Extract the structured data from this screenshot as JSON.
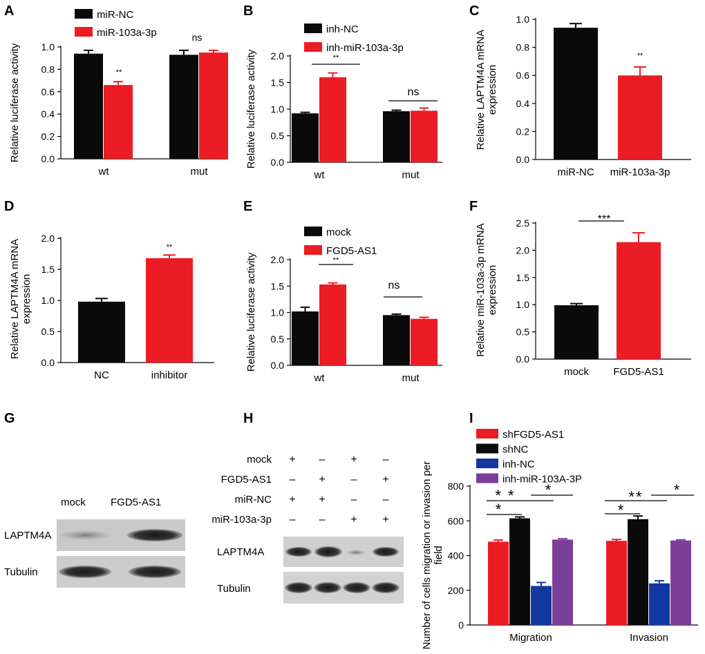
{
  "colors": {
    "black": "#0a0a0a",
    "red": "#ec1c24",
    "blue": "#1237a0",
    "purple": "#7b3f9a"
  },
  "panels": [
    {
      "letter": "A"
    },
    {
      "letter": "B"
    },
    {
      "letter": "C"
    },
    {
      "letter": "D"
    },
    {
      "letter": "E"
    },
    {
      "letter": "F"
    },
    {
      "letter": "G"
    },
    {
      "letter": "H"
    },
    {
      "letter": "I"
    }
  ],
  "chart_data": [
    {
      "panel": "A",
      "type": "bar",
      "ylabel": "Relative luciferase activity",
      "ylim": [
        0,
        1.0
      ],
      "yticks": [
        "0.0",
        "0.2",
        "0.4",
        "0.6",
        "0.8",
        "1.0"
      ],
      "categories": [
        "wt",
        "mut"
      ],
      "series": [
        {
          "name": "miR-NC",
          "color": "#0a0a0a",
          "values": [
            0.94,
            0.93
          ],
          "errors": [
            0.03,
            0.04
          ]
        },
        {
          "name": "miR-103a-3p",
          "color": "#ec1c24",
          "values": [
            0.66,
            0.95
          ],
          "errors": [
            0.03,
            0.02
          ]
        }
      ],
      "annotations": [
        "**",
        "ns"
      ]
    },
    {
      "panel": "B",
      "type": "bar",
      "ylabel": "Relative luciferase activity",
      "ylim": [
        0,
        2.0
      ],
      "yticks": [
        "0.0",
        "0.5",
        "1.0",
        "1.5",
        "2.0"
      ],
      "categories": [
        "wt",
        "mut"
      ],
      "series": [
        {
          "name": "inh-NC",
          "color": "#0a0a0a",
          "values": [
            0.92,
            0.96
          ],
          "errors": [
            0.02,
            0.02
          ]
        },
        {
          "name": "inh-miR-103a-3p",
          "color": "#ec1c24",
          "values": [
            1.6,
            0.97
          ],
          "errors": [
            0.08,
            0.05
          ]
        }
      ],
      "annotations": [
        "**",
        "ns"
      ]
    },
    {
      "panel": "C",
      "type": "bar",
      "ylabel": "Relative LAPTM4A mRNA expression",
      "ylim": [
        0,
        1.0
      ],
      "yticks": [
        "0.0",
        "0.2",
        "0.4",
        "0.6",
        "0.8",
        "1.0"
      ],
      "categories": [
        "miR-NC",
        "miR-103a-3p"
      ],
      "series": [
        {
          "name": "values",
          "colors": [
            "#0a0a0a",
            "#ec1c24"
          ],
          "values": [
            0.94,
            0.6
          ],
          "errors": [
            0.03,
            0.06
          ]
        }
      ],
      "annotations": [
        "**"
      ]
    },
    {
      "panel": "D",
      "type": "bar",
      "ylabel": "Relative LAPTM4A mRNA expression",
      "ylim": [
        0,
        2.0
      ],
      "yticks": [
        "0.0",
        "0.5",
        "1.0",
        "1.5",
        "2.0"
      ],
      "categories": [
        "NC",
        "inhibitor"
      ],
      "series": [
        {
          "name": "values",
          "colors": [
            "#0a0a0a",
            "#ec1c24"
          ],
          "values": [
            0.98,
            1.68
          ],
          "errors": [
            0.05,
            0.05
          ]
        }
      ],
      "annotations": [
        "**"
      ]
    },
    {
      "panel": "E",
      "type": "bar",
      "ylabel": "Relative luciferase activity",
      "ylim": [
        0,
        2.0
      ],
      "yticks": [
        "0.0",
        "0.5",
        "1.0",
        "1.5",
        "2.0"
      ],
      "categories": [
        "wt",
        "mut"
      ],
      "series": [
        {
          "name": "mock",
          "color": "#0a0a0a",
          "values": [
            1.02,
            0.95
          ],
          "errors": [
            0.08,
            0.02
          ]
        },
        {
          "name": "FGD5-AS1",
          "color": "#ec1c24",
          "values": [
            1.53,
            0.88
          ],
          "errors": [
            0.03,
            0.03
          ]
        }
      ],
      "annotations": [
        "**",
        "ns"
      ]
    },
    {
      "panel": "F",
      "type": "bar",
      "ylabel": "Relative miR-103a-3p mRNA expression",
      "ylim": [
        0,
        2.5
      ],
      "yticks": [
        "0.0",
        "0.5",
        "1.0",
        "1.5",
        "2.0",
        "2.5"
      ],
      "categories": [
        "mock",
        "FGD5-AS1"
      ],
      "series": [
        {
          "name": "values",
          "colors": [
            "#0a0a0a",
            "#ec1c24"
          ],
          "values": [
            0.99,
            2.15
          ],
          "errors": [
            0.03,
            0.17
          ]
        }
      ],
      "annotations": [
        "***"
      ]
    },
    {
      "panel": "I",
      "type": "bar",
      "ylabel": "Number of cells migration or invasion per field",
      "ylim": [
        0,
        800
      ],
      "yticks": [
        "0",
        "200",
        "400",
        "600",
        "800"
      ],
      "categories": [
        "Migration",
        "Invasion"
      ],
      "series": [
        {
          "name": "shFGD5-AS1",
          "color": "#ec1c24",
          "values": [
            480,
            485
          ],
          "errors": [
            10,
            8
          ]
        },
        {
          "name": "shNC",
          "color": "#0a0a0a",
          "values": [
            615,
            610
          ],
          "errors": [
            8,
            18
          ]
        },
        {
          "name": "inh-NC",
          "color": "#1237a0",
          "values": [
            225,
            240
          ],
          "errors": [
            20,
            15
          ]
        },
        {
          "name": "inh-miR-103A-3P",
          "color": "#7b3f9a",
          "values": [
            492,
            487
          ],
          "errors": [
            5,
            4
          ]
        }
      ],
      "annotations": [
        "*",
        "* *",
        "*",
        "*",
        "**",
        "*"
      ]
    }
  ],
  "blots": {
    "G": {
      "columns": [
        "mock",
        "FGD5-AS1"
      ],
      "rows": [
        "LAPTM4A",
        "Tubulin"
      ]
    },
    "H": {
      "conditions": [
        {
          "label": "mock",
          "signs": [
            "+",
            "–",
            "+",
            "–"
          ]
        },
        {
          "label": "FGD5-AS1",
          "signs": [
            "–",
            "+",
            "–",
            "+"
          ]
        },
        {
          "label": "miR-NC",
          "signs": [
            "+",
            "+",
            "–",
            "–"
          ]
        },
        {
          "label": "miR-103a-3p",
          "signs": [
            "–",
            "–",
            "+",
            "+"
          ]
        }
      ],
      "rows": [
        "LAPTM4A",
        "Tubulin"
      ]
    }
  }
}
